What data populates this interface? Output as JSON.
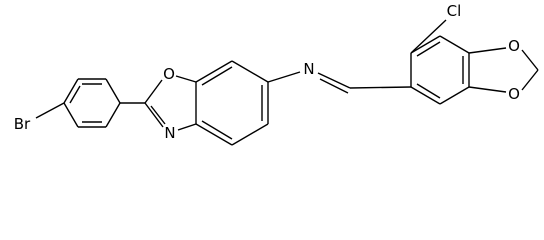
{
  "atoms": [
    {
      "label": "Br"
    },
    {
      "label": "O"
    },
    {
      "label": "N"
    },
    {
      "label": "N"
    },
    {
      "label": "Cl"
    },
    {
      "label": "O"
    },
    {
      "label": "O"
    }
  ]
}
